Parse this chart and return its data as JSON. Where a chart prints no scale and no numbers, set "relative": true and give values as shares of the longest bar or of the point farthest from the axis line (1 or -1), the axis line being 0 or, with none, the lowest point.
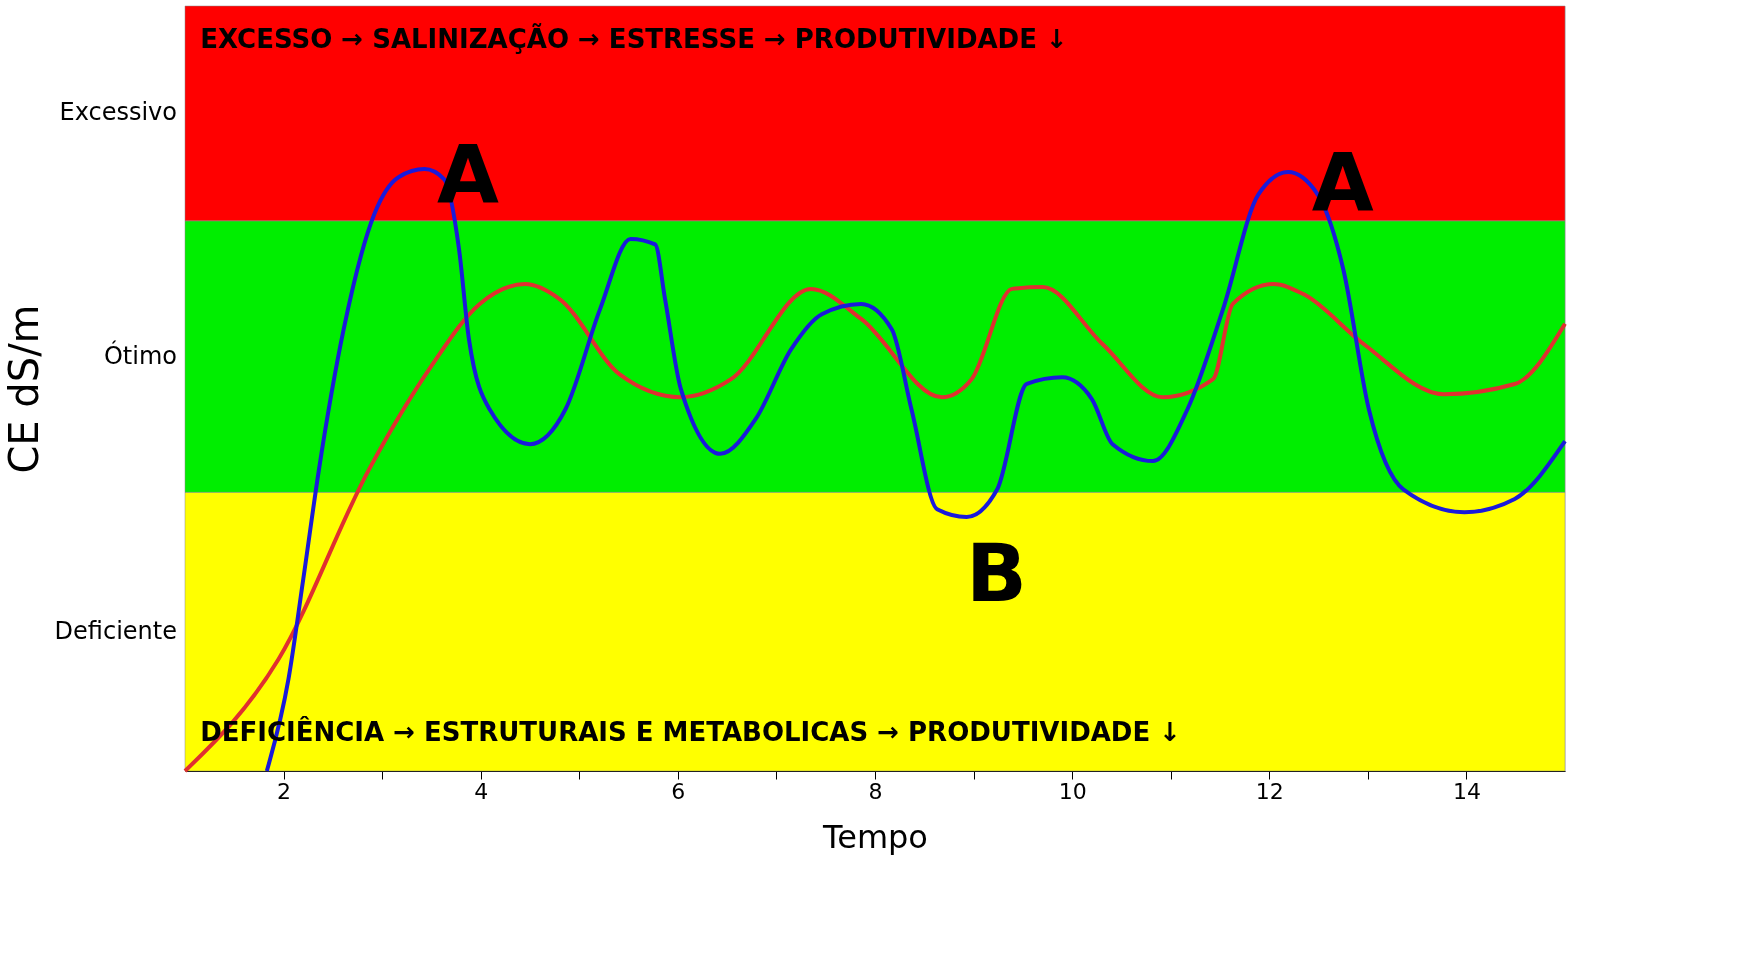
{
  "chart_data": {
    "type": "line",
    "relative": true,
    "xlabel": "Tempo",
    "ylabel": "CE dS/m",
    "xlim": [
      1,
      15
    ],
    "xticks": [
      {
        "value": 2,
        "label": "2"
      },
      {
        "value": 3,
        "label": null
      },
      {
        "value": 4,
        "label": "4"
      },
      {
        "value": 5,
        "label": null
      },
      {
        "value": 6,
        "label": "6"
      },
      {
        "value": 7,
        "label": null
      },
      {
        "value": 8,
        "label": "8"
      },
      {
        "value": 9,
        "label": null
      },
      {
        "value": 10,
        "label": "10"
      },
      {
        "value": 11,
        "label": null
      },
      {
        "value": 12,
        "label": "12"
      },
      {
        "value": 13,
        "label": null
      },
      {
        "value": 14,
        "label": "14"
      }
    ],
    "legend": false,
    "marker": "none",
    "line_style": "solid",
    "bands": [
      {
        "axis": "y",
        "from": 0,
        "to": 0.463,
        "label": "Deficiente",
        "color": "#ffff00"
      },
      {
        "axis": "y",
        "from": 0.463,
        "to": 0.914,
        "label": "Ótimo",
        "color": "#00ee00"
      },
      {
        "axis": "y",
        "from": 0.914,
        "to": 1.271,
        "label": "Excessivo",
        "color": "#ff0000"
      }
    ],
    "series": [
      {
        "color": "#e03030",
        "x": [
          1.0,
          1.95,
          2.87,
          3.48,
          3.99,
          4.45,
          4.8,
          5.41,
          6.03,
          6.54,
          7.35,
          7.86,
          8.68,
          8.98,
          9.39,
          9.7,
          10.31,
          10.92,
          11.43,
          11.63,
          12.04,
          12.35,
          12.96,
          13.77,
          14.49,
          15.0
        ],
        "values": [
          0,
          0.186,
          0.502,
          0.668,
          0.776,
          0.809,
          0.784,
          0.659,
          0.621,
          0.651,
          0.801,
          0.751,
          0.621,
          0.651,
          0.801,
          0.804,
          0.709,
          0.621,
          0.651,
          0.776,
          0.809,
          0.792,
          0.709,
          0.626,
          0.643,
          0.743
        ]
      },
      {
        "color": "#1a1adb",
        "x": [
          1.83,
          2.05,
          2.2,
          2.36,
          2.61,
          2.92,
          3.17,
          3.43,
          3.63,
          3.78,
          3.88,
          4.09,
          4.5,
          4.86,
          5.21,
          5.52,
          5.77,
          5.87,
          6.03,
          6.43,
          6.79,
          7.15,
          7.46,
          7.86,
          8.17,
          8.37,
          8.63,
          8.93,
          9.24,
          9.54,
          9.9,
          10.2,
          10.41,
          10.82,
          11.17,
          11.53,
          11.89,
          12.19,
          12.49,
          12.75,
          13.01,
          13.36,
          13.98,
          14.49,
          15.0
        ],
        "values": [
          0,
          0.153,
          0.319,
          0.502,
          0.734,
          0.925,
          0.987,
          1.0,
          0.983,
          0.867,
          0.718,
          0.601,
          0.543,
          0.601,
          0.767,
          0.884,
          0.875,
          0.784,
          0.635,
          0.527,
          0.585,
          0.701,
          0.759,
          0.776,
          0.734,
          0.601,
          0.435,
          0.422,
          0.468,
          0.643,
          0.654,
          0.618,
          0.543,
          0.515,
          0.601,
          0.767,
          0.958,
          0.995,
          0.958,
          0.834,
          0.601,
          0.468,
          0.43,
          0.452,
          0.548
        ]
      }
    ],
    "annotations": [
      "EXCESSO  →  SALINIZAÇÃO  →  ESTRESSE  →  PRODUTIVIDADE ↓",
      "DEFICIÊNCIA  →  ESTRUTURAIS E METABOLICAS  →  PRODUTIVIDADE ↓",
      "A",
      "A",
      "B"
    ]
  }
}
